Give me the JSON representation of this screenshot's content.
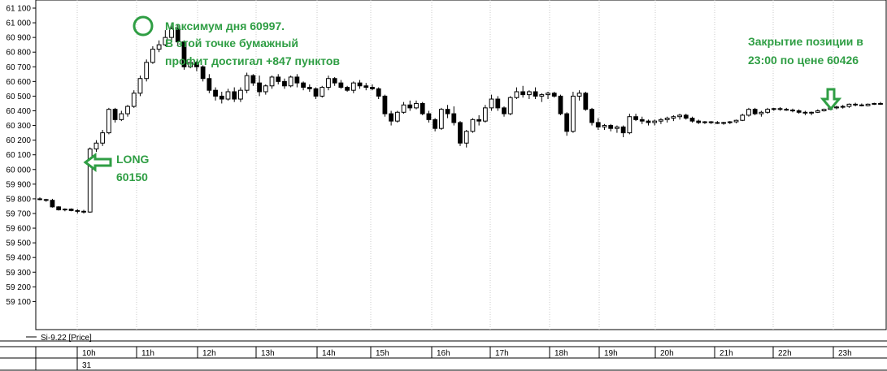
{
  "chart_data": {
    "type": "candlestick",
    "series_name": "Si-9.22 [Price]",
    "ylim": [
      59090,
      61120
    ],
    "y_ticks": [
      "61 100",
      "61 000",
      "60 900",
      "60 800",
      "60 700",
      "60 600",
      "60 500",
      "60 400",
      "60 300",
      "60 200",
      "60 100",
      "60 000",
      "59 900",
      "59 800",
      "59 700",
      "59 600",
      "59 500",
      "59 400",
      "59 300",
      "59 200",
      "59 100"
    ],
    "x_time_labels": [
      "10h",
      "11h",
      "12h",
      "13h",
      "14h",
      "15h",
      "16h",
      "17h",
      "18h",
      "19h",
      "20h",
      "21h",
      "22h",
      "23h"
    ],
    "x_date_label": "31",
    "grid": true,
    "candles": [
      [
        59800,
        59810,
        59790,
        59795
      ],
      [
        59795,
        59800,
        59780,
        59790
      ],
      [
        59790,
        59800,
        59740,
        59745
      ],
      [
        59745,
        59750,
        59720,
        59725
      ],
      [
        59725,
        59735,
        59715,
        59730
      ],
      [
        59730,
        59735,
        59715,
        59720
      ],
      [
        59720,
        59730,
        59700,
        59715
      ],
      [
        59715,
        59725,
        59700,
        59710
      ],
      [
        59710,
        60150,
        59705,
        60140
      ],
      [
        60140,
        60200,
        60120,
        60180
      ],
      [
        60180,
        60270,
        60160,
        60250
      ],
      [
        60250,
        60420,
        60240,
        60410
      ],
      [
        60410,
        60420,
        60320,
        60340
      ],
      [
        60340,
        60400,
        60330,
        60380
      ],
      [
        60380,
        60440,
        60360,
        60430
      ],
      [
        60430,
        60540,
        60420,
        60520
      ],
      [
        60520,
        60640,
        60500,
        60620
      ],
      [
        60620,
        60750,
        60600,
        60730
      ],
      [
        60730,
        60840,
        60720,
        60820
      ],
      [
        60820,
        60880,
        60800,
        60850
      ],
      [
        60850,
        60950,
        60840,
        60900
      ],
      [
        60900,
        60997,
        60880,
        60960
      ],
      [
        60960,
        60990,
        60840,
        60870
      ],
      [
        60870,
        60880,
        60680,
        60700
      ],
      [
        60700,
        60760,
        60690,
        60730
      ],
      [
        60730,
        60740,
        60670,
        60700
      ],
      [
        60700,
        60710,
        60600,
        60620
      ],
      [
        60620,
        60650,
        60520,
        60540
      ],
      [
        60540,
        60560,
        60470,
        60500
      ],
      [
        60500,
        60530,
        60450,
        60480
      ],
      [
        60480,
        60550,
        60470,
        60530
      ],
      [
        60530,
        60560,
        60460,
        60480
      ],
      [
        60480,
        60560,
        60460,
        60540
      ],
      [
        60540,
        60660,
        60520,
        60640
      ],
      [
        60640,
        60650,
        60570,
        60590
      ],
      [
        60590,
        60640,
        60500,
        60530
      ],
      [
        60530,
        60580,
        60510,
        60570
      ],
      [
        60570,
        60640,
        60550,
        60630
      ],
      [
        60630,
        60650,
        60580,
        60600
      ],
      [
        60600,
        60620,
        60550,
        60570
      ],
      [
        60570,
        60640,
        60560,
        60630
      ],
      [
        60630,
        60650,
        60560,
        60590
      ],
      [
        60590,
        60600,
        60540,
        60560
      ],
      [
        60560,
        60580,
        60530,
        60550
      ],
      [
        60550,
        60560,
        60480,
        60500
      ],
      [
        60500,
        60570,
        60490,
        60560
      ],
      [
        60560,
        60640,
        60540,
        60620
      ],
      [
        60620,
        60630,
        60570,
        60590
      ],
      [
        60590,
        60610,
        60550,
        60560
      ],
      [
        60560,
        60570,
        60530,
        60540
      ],
      [
        60540,
        60600,
        60520,
        60590
      ],
      [
        60590,
        60610,
        60550,
        60570
      ],
      [
        60570,
        60590,
        60540,
        60560
      ],
      [
        60560,
        60580,
        60540,
        60550
      ],
      [
        60550,
        60560,
        60480,
        60500
      ],
      [
        60500,
        60510,
        60360,
        60380
      ],
      [
        60380,
        60400,
        60300,
        60330
      ],
      [
        60330,
        60400,
        60320,
        60390
      ],
      [
        60390,
        60460,
        60380,
        60440
      ],
      [
        60440,
        60470,
        60400,
        60420
      ],
      [
        60420,
        60470,
        60410,
        60450
      ],
      [
        60450,
        60460,
        60370,
        60380
      ],
      [
        60380,
        60400,
        60320,
        60340
      ],
      [
        60340,
        60350,
        60260,
        60280
      ],
      [
        60280,
        60420,
        60270,
        60410
      ],
      [
        60410,
        60440,
        60350,
        60380
      ],
      [
        60380,
        60430,
        60300,
        60320
      ],
      [
        60320,
        60330,
        60160,
        60180
      ],
      [
        60180,
        60270,
        60150,
        60260
      ],
      [
        60260,
        60350,
        60250,
        60340
      ],
      [
        60340,
        60370,
        60300,
        60330
      ],
      [
        60330,
        60440,
        60320,
        60420
      ],
      [
        60420,
        60510,
        60400,
        60480
      ],
      [
        60480,
        60500,
        60400,
        60420
      ],
      [
        60420,
        60430,
        60360,
        60380
      ],
      [
        60380,
        60500,
        60370,
        60490
      ],
      [
        60490,
        60560,
        60480,
        60530
      ],
      [
        60530,
        60570,
        60490,
        60510
      ],
      [
        60510,
        60540,
        60480,
        60530
      ],
      [
        60530,
        60560,
        60480,
        60500
      ],
      [
        60500,
        60520,
        60460,
        60510
      ],
      [
        60510,
        60530,
        60480,
        60520
      ],
      [
        60520,
        60530,
        60490,
        60500
      ],
      [
        60500,
        60510,
        60370,
        60380
      ],
      [
        60380,
        60390,
        60230,
        60260
      ],
      [
        60260,
        60530,
        60250,
        60500
      ],
      [
        60500,
        60540,
        60470,
        60520
      ],
      [
        60520,
        60530,
        60400,
        60410
      ],
      [
        60410,
        60420,
        60300,
        60320
      ],
      [
        60320,
        60350,
        60270,
        60290
      ],
      [
        60290,
        60310,
        60270,
        60300
      ],
      [
        60300,
        60310,
        60260,
        60280
      ],
      [
        60280,
        60300,
        60250,
        60290
      ],
      [
        60290,
        60300,
        60220,
        60250
      ],
      [
        60250,
        60380,
        60240,
        60360
      ],
      [
        60360,
        60380,
        60330,
        60340
      ],
      [
        60340,
        60360,
        60310,
        60330
      ],
      [
        60330,
        60340,
        60300,
        60320
      ],
      [
        60320,
        60340,
        60300,
        60330
      ],
      [
        60330,
        60350,
        60310,
        60340
      ],
      [
        60340,
        60360,
        60320,
        60350
      ],
      [
        60350,
        60370,
        60330,
        60360
      ],
      [
        60360,
        60380,
        60340,
        60370
      ],
      [
        60370,
        60380,
        60340,
        60350
      ],
      [
        60350,
        60360,
        60320,
        60330
      ],
      [
        60330,
        60340,
        60310,
        60320
      ],
      [
        60320,
        60330,
        60310,
        60325
      ],
      [
        60325,
        60330,
        60310,
        60320
      ],
      [
        60320,
        60330,
        60310,
        60315
      ],
      [
        60315,
        60325,
        60305,
        60320
      ],
      [
        60320,
        60330,
        60310,
        60325
      ],
      [
        60325,
        60340,
        60315,
        60335
      ],
      [
        60335,
        60380,
        60330,
        60370
      ],
      [
        60370,
        60420,
        60360,
        60410
      ],
      [
        60410,
        60420,
        60370,
        60380
      ],
      [
        60380,
        60400,
        60360,
        60390
      ],
      [
        60390,
        60420,
        60380,
        60410
      ],
      [
        60410,
        60420,
        60400,
        60415
      ],
      [
        60415,
        60425,
        60400,
        60410
      ],
      [
        60410,
        60420,
        60400,
        60405
      ],
      [
        60405,
        60415,
        60390,
        60400
      ],
      [
        60400,
        60410,
        60380,
        60390
      ],
      [
        60390,
        60400,
        60370,
        60385
      ],
      [
        60385,
        60395,
        60370,
        60390
      ],
      [
        60390,
        60410,
        60385,
        60400
      ],
      [
        60400,
        60415,
        60395,
        60410
      ],
      [
        60410,
        60425,
        60405,
        60420
      ],
      [
        60420,
        60435,
        60410,
        60426
      ],
      [
        60426,
        60440,
        60415,
        60430
      ],
      [
        60430,
        60450,
        60420,
        60445
      ],
      [
        60445,
        60455,
        60430,
        60440
      ],
      [
        60440,
        60450,
        60430,
        60435
      ],
      [
        60435,
        60450,
        60430,
        60445
      ],
      [
        60445,
        60455,
        60440,
        60450
      ],
      [
        60450,
        60460,
        60440,
        60445
      ]
    ],
    "annotations": {
      "max_lines": [
        "Максимум дня 60997.",
        "В этой точке бумажный",
        "профит достигал +847 пунктов"
      ],
      "long_lines": [
        "LONG",
        "60150"
      ],
      "close_lines": [
        "Закрытие позиции в",
        "23:00 по цене 60426"
      ]
    },
    "colors": {
      "annotation": "#2f9e44",
      "up_candle": "#ffffff",
      "down_candle": "#000000",
      "grid": "#c8c8c8"
    }
  }
}
